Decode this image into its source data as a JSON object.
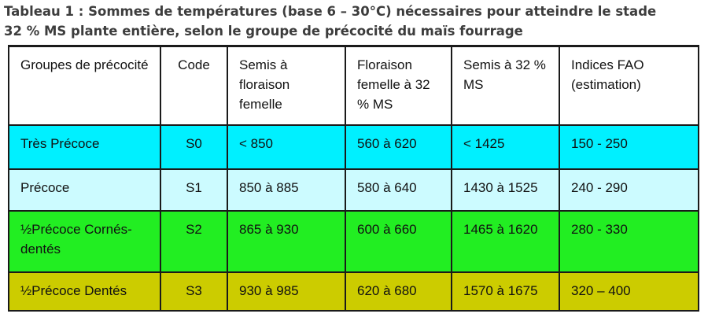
{
  "caption": {
    "line1": "Tableau 1 : Sommes de températures (base 6 – 30°C) nécessaires pour atteindre le stade",
    "line2": "32 % MS plante entière, selon le groupe de précocité du maïs fourrage"
  },
  "table": {
    "headers": [
      "Groupes de précocité",
      "Code",
      "Semis à floraison femelle",
      "Floraison femelle à 32 % MS",
      "Semis à 32 % MS",
      "Indices FAO (estimation)"
    ],
    "rows": [
      {
        "cells": [
          "Très Précoce",
          "S0",
          "< 850",
          "560 à 620",
          "< 1425",
          "150 - 250"
        ],
        "color": "#00f0ff"
      },
      {
        "cells": [
          "Précoce",
          "S1",
          "850 à 885",
          "580 à 640",
          "1430 à 1525",
          "240 - 290"
        ],
        "color": "#ccfbff"
      },
      {
        "cells": [
          "½Précoce Cornés-dentés",
          "S2",
          "865 à 930",
          "600 à 660",
          "1465 à 1620",
          "280 - 330"
        ],
        "color": "#22ee22"
      },
      {
        "cells": [
          "½Précoce Dentés",
          "S3",
          "930 à 985",
          "620 à 680",
          "1570 à 1675",
          "320 – 400"
        ],
        "color": "#cccc00"
      }
    ]
  }
}
